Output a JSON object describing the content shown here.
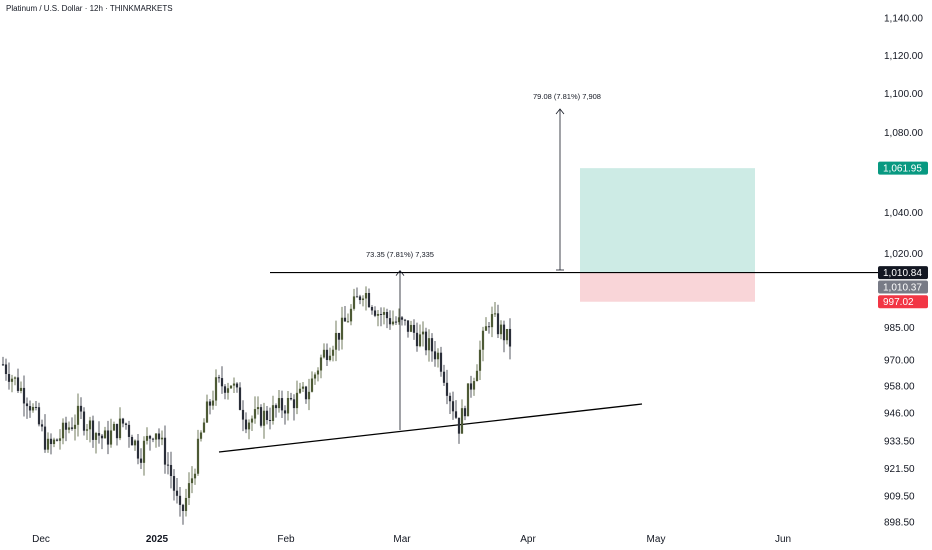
{
  "header": {
    "title": "Platinum / U.S. Dollar · 12h · THINKMARKETS"
  },
  "colors": {
    "candle_up": "#4d5a35",
    "candle_down": "#2a2e39",
    "target_zone": "#cdebe5",
    "stop_zone": "#f9d5d8",
    "target_tag": "#089981",
    "stop_tag": "#f23645",
    "current_tag": "#131722",
    "last_tag": "#787b86"
  },
  "chart_data": {
    "type": "candlestick",
    "title": "Platinum / U.S. Dollar · 12h · THINKMARKETS",
    "y_axis": {
      "scale": "log",
      "ticks": [
        "1,140.00",
        "1,120.00",
        "1,100.00",
        "1,080.00",
        "1,040.00",
        "1,020.00",
        "985.00",
        "970.00",
        "958.00",
        "946.00",
        "933.50",
        "921.50",
        "909.50",
        "898.50"
      ]
    },
    "x_axis": {
      "ticks": [
        {
          "label": "Dec",
          "bold": false
        },
        {
          "label": "2025",
          "bold": true
        },
        {
          "label": "Feb",
          "bold": false
        },
        {
          "label": "Mar",
          "bold": false
        },
        {
          "label": "Apr",
          "bold": false
        },
        {
          "label": "May",
          "bold": false
        },
        {
          "label": "Jun",
          "bold": false
        }
      ]
    },
    "price_tags": {
      "target": "1,061.95",
      "current": "1,010.84",
      "last": "1,010.37",
      "stop": "997.02"
    },
    "levels": {
      "resistance": 1010.84,
      "target": 1061.95,
      "stop": 997.02
    },
    "annotations": {
      "pattern_height": "73.35 (7.81%) 7,335",
      "projection": "79.08 (7.81%) 7,908"
    },
    "anchors": [
      {
        "x_frac": 0.0,
        "price": 968
      },
      {
        "x_frac": 0.05,
        "price": 952
      },
      {
        "x_frac": 0.09,
        "price": 930
      },
      {
        "x_frac": 0.15,
        "price": 945
      },
      {
        "x_frac": 0.2,
        "price": 934
      },
      {
        "x_frac": 0.24,
        "price": 942
      },
      {
        "x_frac": 0.27,
        "price": 928
      },
      {
        "x_frac": 0.3,
        "price": 940
      },
      {
        "x_frac": 0.33,
        "price": 920
      },
      {
        "x_frac": 0.35,
        "price": 900
      },
      {
        "x_frac": 0.37,
        "price": 915
      },
      {
        "x_frac": 0.4,
        "price": 945
      },
      {
        "x_frac": 0.42,
        "price": 958
      },
      {
        "x_frac": 0.45,
        "price": 960
      },
      {
        "x_frac": 0.48,
        "price": 943
      },
      {
        "x_frac": 0.52,
        "price": 945
      },
      {
        "x_frac": 0.56,
        "price": 950
      },
      {
        "x_frac": 0.6,
        "price": 955
      },
      {
        "x_frac": 0.63,
        "price": 972
      },
      {
        "x_frac": 0.67,
        "price": 985
      },
      {
        "x_frac": 0.71,
        "price": 1003
      },
      {
        "x_frac": 0.74,
        "price": 992
      },
      {
        "x_frac": 0.77,
        "price": 988
      },
      {
        "x_frac": 0.8,
        "price": 985
      },
      {
        "x_frac": 0.83,
        "price": 978
      },
      {
        "x_frac": 0.86,
        "price": 972
      },
      {
        "x_frac": 0.88,
        "price": 955
      },
      {
        "x_frac": 0.9,
        "price": 940
      },
      {
        "x_frac": 0.93,
        "price": 965
      },
      {
        "x_frac": 0.96,
        "price": 990
      },
      {
        "x_frac": 1.0,
        "price": 978
      }
    ],
    "grid": false
  }
}
